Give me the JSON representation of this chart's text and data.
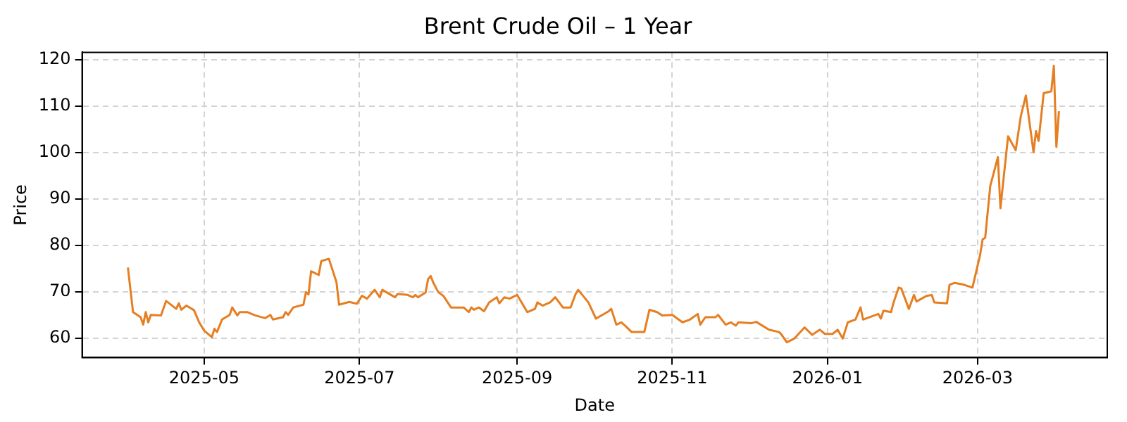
{
  "chart_data": {
    "type": "line",
    "title": "Brent Crude Oil – 1 Year",
    "xlabel": "Date",
    "ylabel": "Price",
    "xlim": [
      "2025-03-14",
      "2026-04-21"
    ],
    "xticks": [
      "2025-05",
      "2025-07",
      "2025-09",
      "2025-11",
      "2026-01",
      "2026-03"
    ],
    "ylim": [
      55.8,
      121.6
    ],
    "yticks": [
      60,
      70,
      80,
      90,
      100,
      110,
      120
    ],
    "grid": true,
    "legend": false,
    "line_style": "solid",
    "marker": "none",
    "series": [
      {
        "color": "#e67e22",
        "x": [
          "2025-04-01",
          "2025-04-03",
          "2025-04-06",
          "2025-04-07",
          "2025-04-08",
          "2025-04-09",
          "2025-04-10",
          "2025-04-14",
          "2025-04-16",
          "2025-04-20",
          "2025-04-21",
          "2025-04-22",
          "2025-04-24",
          "2025-04-27",
          "2025-04-29",
          "2025-05-01",
          "2025-05-04",
          "2025-05-05",
          "2025-05-06",
          "2025-05-08",
          "2025-05-11",
          "2025-05-12",
          "2025-05-14",
          "2025-05-15",
          "2025-05-18",
          "2025-05-21",
          "2025-05-25",
          "2025-05-27",
          "2025-05-28",
          "2025-06-01",
          "2025-06-02",
          "2025-06-03",
          "2025-06-05",
          "2025-06-09",
          "2025-06-10",
          "2025-06-11",
          "2025-06-12",
          "2025-06-15",
          "2025-06-16",
          "2025-06-19",
          "2025-06-22",
          "2025-06-23",
          "2025-06-27",
          "2025-06-30",
          "2025-07-02",
          "2025-07-04",
          "2025-07-07",
          "2025-07-09",
          "2025-07-10",
          "2025-07-15",
          "2025-07-16",
          "2025-07-20",
          "2025-07-22",
          "2025-07-23",
          "2025-07-24",
          "2025-07-27",
          "2025-07-28",
          "2025-07-29",
          "2025-07-30",
          "2025-08-01",
          "2025-08-03",
          "2025-08-06",
          "2025-08-11",
          "2025-08-13",
          "2025-08-14",
          "2025-08-15",
          "2025-08-17",
          "2025-08-19",
          "2025-08-21",
          "2025-08-24",
          "2025-08-25",
          "2025-08-27",
          "2025-08-29",
          "2025-09-01",
          "2025-09-05",
          "2025-09-08",
          "2025-09-09",
          "2025-09-11",
          "2025-09-14",
          "2025-09-16",
          "2025-09-19",
          "2025-09-22",
          "2025-09-24",
          "2025-09-25",
          "2025-09-29",
          "2025-10-02",
          "2025-10-07",
          "2025-10-08",
          "2025-10-10",
          "2025-10-12",
          "2025-10-14",
          "2025-10-16",
          "2025-10-21",
          "2025-10-23",
          "2025-10-26",
          "2025-10-28",
          "2025-11-01",
          "2025-11-05",
          "2025-11-08",
          "2025-11-11",
          "2025-11-12",
          "2025-11-14",
          "2025-11-18",
          "2025-11-19",
          "2025-11-22",
          "2025-11-24",
          "2025-11-26",
          "2025-11-27",
          "2025-12-02",
          "2025-12-04",
          "2025-12-09",
          "2025-12-13",
          "2025-12-14",
          "2025-12-16",
          "2025-12-19",
          "2025-12-23",
          "2025-12-26",
          "2025-12-29",
          "2025-12-31",
          "2026-01-03",
          "2026-01-05",
          "2026-01-07",
          "2026-01-09",
          "2026-01-12",
          "2026-01-14",
          "2026-01-15",
          "2026-01-21",
          "2026-01-22",
          "2026-01-23",
          "2026-01-26",
          "2026-01-27",
          "2026-01-29",
          "2026-01-30",
          "2026-02-02",
          "2026-02-04",
          "2026-02-05",
          "2026-02-09",
          "2026-02-11",
          "2026-02-12",
          "2026-02-17",
          "2026-02-18",
          "2026-02-20",
          "2026-02-23",
          "2026-02-27",
          "2026-03-02",
          "2026-03-03",
          "2026-03-04",
          "2026-03-06",
          "2026-03-09",
          "2026-03-10",
          "2026-03-13",
          "2026-03-16",
          "2026-03-18",
          "2026-03-20",
          "2026-03-23",
          "2026-03-24",
          "2026-03-25",
          "2026-03-27",
          "2026-03-30",
          "2026-03-31",
          "2026-04-01",
          "2026-04-02"
        ],
        "values": [
          75.2,
          65.6,
          64.5,
          62.9,
          65.6,
          63.4,
          65.0,
          64.9,
          68.0,
          66.3,
          67.5,
          66.1,
          67.0,
          66.0,
          63.4,
          61.6,
          60.2,
          62.0,
          61.3,
          64.0,
          65.0,
          66.6,
          64.9,
          65.6,
          65.6,
          64.9,
          64.3,
          65.0,
          64.0,
          64.5,
          65.6,
          65.0,
          66.6,
          67.2,
          69.9,
          69.4,
          74.4,
          73.6,
          76.6,
          77.1,
          72.0,
          67.2,
          67.8,
          67.4,
          69.1,
          68.5,
          70.4,
          68.8,
          70.4,
          68.8,
          69.5,
          69.3,
          68.8,
          69.3,
          68.8,
          69.8,
          72.7,
          73.4,
          72.0,
          69.9,
          69.1,
          66.6,
          66.6,
          65.6,
          66.6,
          66.1,
          66.6,
          65.8,
          67.7,
          68.8,
          67.5,
          68.8,
          68.5,
          69.3,
          65.6,
          66.3,
          67.7,
          67.0,
          67.7,
          68.8,
          66.6,
          66.6,
          69.5,
          70.4,
          67.7,
          64.2,
          65.8,
          66.3,
          62.9,
          63.4,
          62.4,
          61.3,
          61.3,
          66.1,
          65.6,
          64.9,
          65.0,
          63.4,
          64.0,
          65.2,
          62.9,
          64.5,
          64.5,
          65.0,
          62.9,
          63.4,
          62.7,
          63.4,
          63.2,
          63.5,
          61.8,
          61.3,
          60.7,
          59.1,
          59.9,
          62.3,
          60.7,
          61.8,
          60.9,
          60.9,
          61.8,
          59.9,
          63.4,
          64.0,
          66.6,
          64.0,
          65.2,
          64.2,
          65.9,
          65.6,
          67.7,
          70.9,
          70.7,
          66.3,
          69.3,
          67.9,
          69.1,
          69.3,
          67.7,
          67.5,
          71.5,
          71.9,
          71.6,
          70.9,
          77.9,
          81.3,
          81.6,
          92.8,
          99.0,
          88.0,
          103.5,
          100.5,
          107.8,
          112.3,
          100.1,
          104.6,
          102.5,
          112.8,
          113.2,
          118.7,
          101.2,
          108.9
        ]
      }
    ]
  }
}
